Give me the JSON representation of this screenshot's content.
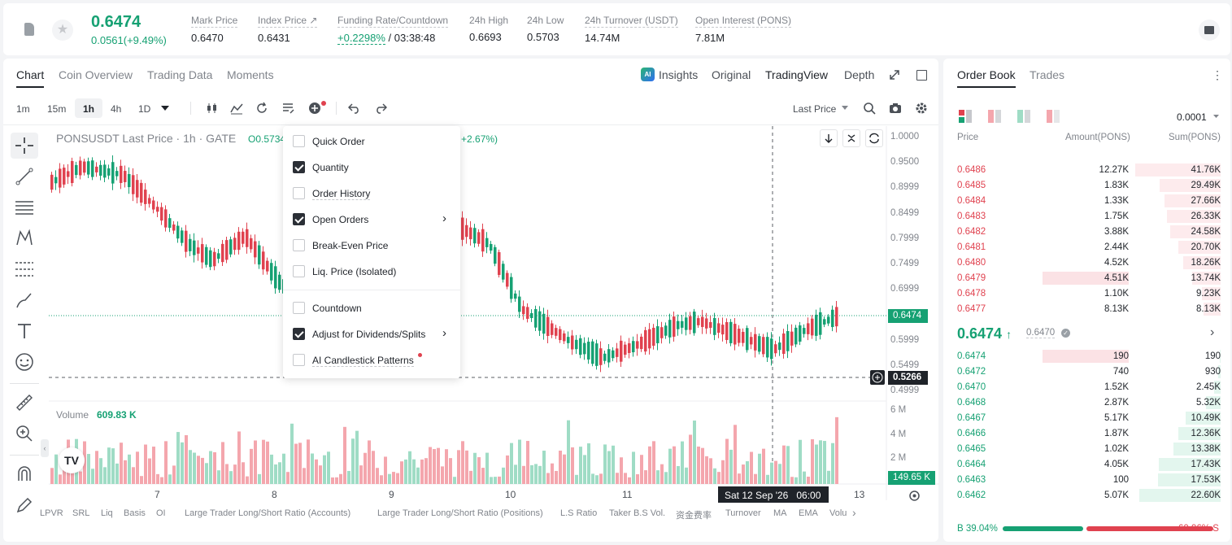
{
  "header": {
    "price": "0.6474",
    "change": "0.0561(+9.49%)",
    "stats": [
      {
        "label": "Mark Price",
        "value": "0.6470"
      },
      {
        "label": "Index Price ↗",
        "value": "0.6431"
      },
      {
        "label": "Funding Rate/Countdown",
        "value_rate": "+0.2298%",
        "value_count": "/ 03:38:48"
      },
      {
        "label": "24h High",
        "value": "0.6693"
      },
      {
        "label": "24h Low",
        "value": "0.5703"
      },
      {
        "label": "24h Turnover (USDT)",
        "value": "14.74M"
      },
      {
        "label": "Open Interest (PONS)",
        "value": "7.81M"
      }
    ]
  },
  "chart_tabs": [
    "Chart",
    "Coin Overview",
    "Trading Data",
    "Moments"
  ],
  "view_tabs": [
    "Insights",
    "Original",
    "TradingView",
    "Depth"
  ],
  "intervals": [
    "1m",
    "15m",
    "1h",
    "4h",
    "1D"
  ],
  "price_type": "Last Price",
  "legend": {
    "title": "PONSUSDT Last Price · 1h · GATE",
    "o": "O0.5734",
    "chg": "+2.67%)"
  },
  "menu": [
    {
      "label": "Quick Order",
      "checked": false
    },
    {
      "label": "Quantity",
      "checked": true
    },
    {
      "label": "Order History",
      "checked": false
    },
    {
      "label": "Open Orders",
      "checked": true,
      "arrow": true
    },
    {
      "label": "Break-Even Price",
      "checked": false
    },
    {
      "label": "Liq. Price (Isolated)",
      "checked": false
    },
    {
      "label": "Countdown",
      "checked": false
    },
    {
      "label": "Adjust for Dividends/Splits",
      "checked": true,
      "arrow": true
    },
    {
      "label": "AI Candlestick Patterns",
      "checked": false,
      "dot": true
    }
  ],
  "yaxis": [
    "1.0000",
    "0.9500",
    "0.8999",
    "0.8499",
    "0.7999",
    "0.7499",
    "0.6999",
    "0.6474",
    "0.5999",
    "0.5499",
    "0.5266",
    "0.4999"
  ],
  "vol_axis": [
    "6 M",
    "4 M",
    "2 M",
    "149.65 K"
  ],
  "volume_label": "Volume",
  "volume_value": "609.83 K",
  "xaxis": [
    "7",
    "8",
    "9",
    "10",
    "11",
    "Sat 12 Sep '26",
    "06:00",
    "13"
  ],
  "indicators": [
    "LPVR",
    "SRL",
    "Liq",
    "Basis",
    "OI",
    "Large Trader Long/Short Ratio (Accounts)",
    "Large Trader Long/Short Ratio (Positions)",
    "L.S Ratio",
    "Taker B.S Vol.",
    "资金费率",
    "Turnover",
    "MA",
    "EMA",
    "Volu"
  ],
  "book": {
    "tabs": [
      "Order Book",
      "Trades"
    ],
    "precision": "0.0001",
    "cols": [
      "Price",
      "Amount(PONS)",
      "Sum(PONS)"
    ],
    "asks": [
      {
        "p": "0.6486",
        "a": "12.27K",
        "s": "41.76K",
        "d": 1.0
      },
      {
        "p": "0.6485",
        "a": "1.83K",
        "s": "29.49K",
        "d": 0.71
      },
      {
        "p": "0.6484",
        "a": "1.33K",
        "s": "27.66K",
        "d": 0.66
      },
      {
        "p": "0.6483",
        "a": "1.75K",
        "s": "26.33K",
        "d": 0.63
      },
      {
        "p": "0.6482",
        "a": "3.88K",
        "s": "24.58K",
        "d": 0.59
      },
      {
        "p": "0.6481",
        "a": "2.44K",
        "s": "20.70K",
        "d": 0.5
      },
      {
        "p": "0.6480",
        "a": "4.52K",
        "s": "18.26K",
        "d": 0.44
      },
      {
        "p": "0.6479",
        "a": "4.51K",
        "s": "13.74K",
        "d": 0.33,
        "hl": true
      },
      {
        "p": "0.6478",
        "a": "1.10K",
        "s": "9.23K",
        "d": 0.22
      },
      {
        "p": "0.6477",
        "a": "8.13K",
        "s": "8.13K",
        "d": 0.2
      }
    ],
    "mid": "0.6474",
    "mark": "0.6470",
    "bids": [
      {
        "p": "0.6474",
        "a": "190",
        "s": "190",
        "d": 0.01,
        "hl": true
      },
      {
        "p": "0.6472",
        "a": "740",
        "s": "930",
        "d": 0.03
      },
      {
        "p": "0.6470",
        "a": "1.52K",
        "s": "2.45K",
        "d": 0.08
      },
      {
        "p": "0.6468",
        "a": "2.87K",
        "s": "5.32K",
        "d": 0.17
      },
      {
        "p": "0.6467",
        "a": "5.17K",
        "s": "10.49K",
        "d": 0.41
      },
      {
        "p": "0.6466",
        "a": "1.87K",
        "s": "12.36K",
        "d": 0.5
      },
      {
        "p": "0.6465",
        "a": "1.02K",
        "s": "13.38K",
        "d": 0.55
      },
      {
        "p": "0.6464",
        "a": "4.05K",
        "s": "17.43K",
        "d": 0.72
      },
      {
        "p": "0.6463",
        "a": "100",
        "s": "17.53K",
        "d": 0.73
      },
      {
        "p": "0.6462",
        "a": "5.07K",
        "s": "22.60K",
        "d": 0.95
      }
    ],
    "buy_pct": "B 39.04%",
    "sell_pct": "60.96% S",
    "buy_ratio": 0.3904
  },
  "colors": {
    "up": "#16a173",
    "down": "#e0424f"
  }
}
